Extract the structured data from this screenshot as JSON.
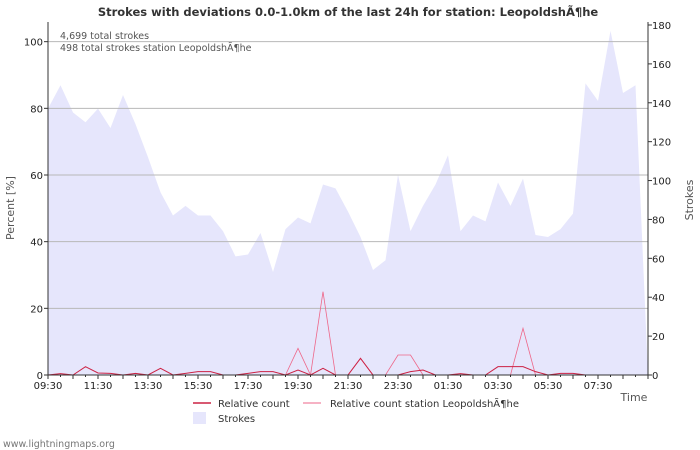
{
  "chart_data": {
    "type": "area",
    "title": "Strokes with deviations 0.0-1.0km of the last 24h for station: LeopoldshÃ¶he",
    "xlabel": "Time",
    "ylabel_left": "Percent   [%]",
    "ylabel_right": "Strokes",
    "ylim_left": [
      0,
      105
    ],
    "ylim_right": [
      0,
      180
    ],
    "yticks_left": [
      "0",
      "20",
      "40",
      "60",
      "80",
      "100"
    ],
    "yticks_right": [
      "0",
      "20",
      "40",
      "60",
      "80",
      "100",
      "120",
      "140",
      "160",
      "180"
    ],
    "xticks": [
      "09:30",
      "11:30",
      "13:30",
      "15:30",
      "17:30",
      "19:30",
      "21:30",
      "23:30",
      "01:30",
      "03:30",
      "05:30",
      "07:30"
    ],
    "notes": [
      "4,699 total strokes",
      "498 total strokes station LeopoldshÃ¶he"
    ],
    "legend": {
      "relative_count": "Relative count",
      "relative_count_station": "Relative count station LeopoldshÃ¶he",
      "strokes": "Strokes"
    },
    "colors": {
      "strokes_fill": "#e6e6fc",
      "relative_count": "#cc2244",
      "relative_count_station": "#ee6688",
      "grid": "#b8b8b8",
      "axis": "#333333"
    },
    "x_hours": [
      0,
      0.5,
      1,
      1.5,
      2,
      2.5,
      3,
      3.5,
      4,
      4.5,
      5,
      5.5,
      6,
      6.5,
      7,
      7.5,
      8,
      8.5,
      9,
      9.5,
      10,
      10.5,
      11,
      11.5,
      12,
      12.5,
      13,
      13.5,
      14,
      14.5,
      15,
      15.5,
      16,
      16.5,
      17,
      17.5,
      18,
      18.5,
      19,
      19.5,
      20,
      20.5,
      21,
      21.5,
      22,
      22.5,
      23,
      23.5,
      24
    ],
    "strokes": [
      137,
      149,
      135,
      130,
      137,
      127,
      144,
      129,
      112,
      94,
      82,
      87,
      82,
      82,
      74,
      61,
      62,
      73,
      53,
      75,
      81,
      78,
      98,
      96,
      84,
      71,
      54,
      59,
      103,
      74,
      87,
      98,
      113,
      74,
      82,
      79,
      99,
      87,
      101,
      72,
      71,
      75,
      83,
      150,
      141,
      177,
      145,
      149,
      0
    ],
    "relative_count": [
      0,
      0.4,
      0,
      2.5,
      0.6,
      0.5,
      0,
      0.5,
      0,
      2,
      0,
      0.5,
      1,
      1,
      0,
      0,
      0.5,
      1,
      1,
      0,
      1.5,
      0,
      2,
      0,
      0,
      5,
      0,
      0,
      0,
      1,
      1.5,
      0,
      0,
      0.4,
      0,
      0,
      2.5,
      2.5,
      2.5,
      1,
      0,
      0.5,
      0.5,
      0,
      0,
      0,
      0,
      0,
      0
    ],
    "relative_count_station": [
      0,
      0,
      0,
      0,
      0,
      0,
      0,
      0,
      0,
      0,
      0,
      0,
      0,
      0,
      0,
      0,
      0,
      0,
      0,
      0,
      8,
      0,
      25,
      0,
      0,
      5,
      0,
      0,
      6,
      6,
      0,
      0,
      0,
      0,
      0,
      0,
      0,
      0,
      14,
      0,
      0,
      0,
      0,
      0,
      0,
      0,
      0,
      0,
      0
    ]
  },
  "footer": {
    "watermark": "www.lightningmaps.org"
  }
}
